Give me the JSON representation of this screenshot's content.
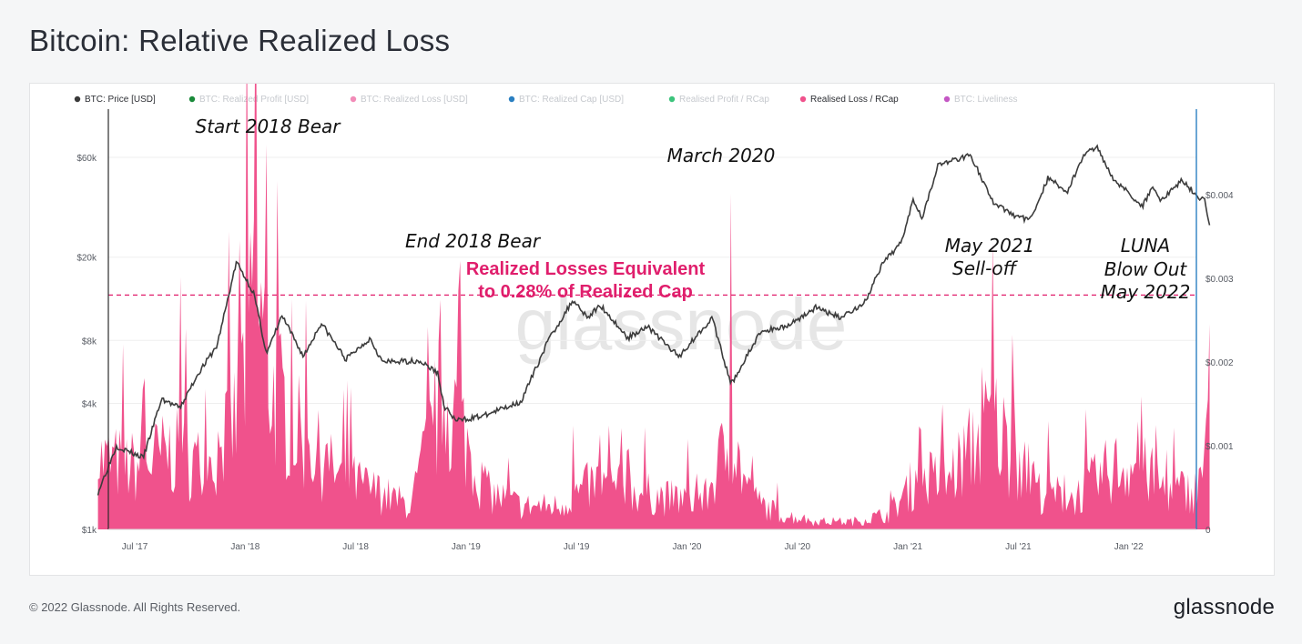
{
  "title": "Bitcoin: Relative Realized Loss",
  "footer": {
    "copyright": "© 2022 Glassnode. All Rights Reserved.",
    "logo": "glassnode"
  },
  "colors": {
    "loss_fill": "#f0528c",
    "price_line": "#3c3c3c",
    "threshold": "#e01e6c",
    "right_axis": "#2a7fc1"
  },
  "chart_data": {
    "type": "area",
    "watermark": "glassnode",
    "legend": [
      {
        "label": "BTC: Price [USD]",
        "color": "#3a3a3a",
        "active": true
      },
      {
        "label": "BTC: Realized Profit [USD]",
        "color": "#1a8a3a",
        "active": false
      },
      {
        "label": "BTC: Realized Loss [USD]",
        "color": "#f28cb8",
        "active": false
      },
      {
        "label": "BTC: Realized Cap [USD]",
        "color": "#2a7fc1",
        "active": false
      },
      {
        "label": "Realised Profit / RCap",
        "color": "#3cc47c",
        "active": false
      },
      {
        "label": "Realised Loss / RCap",
        "color": "#f0528c",
        "active": true
      },
      {
        "label": "BTC: Liveliness",
        "color": "#c457c4",
        "active": false
      }
    ],
    "x_ticks": [
      "Jul '17",
      "Jan '18",
      "Jul '18",
      "Jan '19",
      "Jul '19",
      "Jan '20",
      "Jul '20",
      "Jan '21",
      "Jul '21",
      "Jan '22"
    ],
    "x_range": [
      "2017-05",
      "2022-06"
    ],
    "y_left": {
      "scale": "log",
      "ticks": [
        "$1k",
        "$4k",
        "$8k",
        "$20k",
        "$60k"
      ],
      "values": [
        1000,
        4000,
        8000,
        20000,
        60000
      ]
    },
    "y_right": {
      "scale": "linear",
      "ticks": [
        "0",
        "$0.001",
        "$0.002",
        "$0.003",
        "$0.004"
      ],
      "values": [
        0,
        0.001,
        0.002,
        0.003,
        0.004
      ]
    },
    "threshold_value": 0.0028,
    "series": [
      {
        "name": "BTC: Price [USD]",
        "axis": "left",
        "points": [
          [
            "2017-05-01",
            1500
          ],
          [
            "2017-06-01",
            2500
          ],
          [
            "2017-07-15",
            2200
          ],
          [
            "2017-08-15",
            4200
          ],
          [
            "2017-09-15",
            3800
          ],
          [
            "2017-10-15",
            5600
          ],
          [
            "2017-11-15",
            7500
          ],
          [
            "2017-12-17",
            19000
          ],
          [
            "2018-01-15",
            13500
          ],
          [
            "2018-02-06",
            6900
          ],
          [
            "2018-03-01",
            10500
          ],
          [
            "2018-04-06",
            6700
          ],
          [
            "2018-05-05",
            9700
          ],
          [
            "2018-06-15",
            6500
          ],
          [
            "2018-07-25",
            8200
          ],
          [
            "2018-08-15",
            6300
          ],
          [
            "2018-10-15",
            6400
          ],
          [
            "2018-11-15",
            5600
          ],
          [
            "2018-11-25",
            3900
          ],
          [
            "2018-12-15",
            3300
          ],
          [
            "2019-02-01",
            3500
          ],
          [
            "2019-04-01",
            4100
          ],
          [
            "2019-05-15",
            8000
          ],
          [
            "2019-06-26",
            12500
          ],
          [
            "2019-07-20",
            10300
          ],
          [
            "2019-08-10",
            11800
          ],
          [
            "2019-09-25",
            8200
          ],
          [
            "2019-10-26",
            9400
          ],
          [
            "2019-12-18",
            6700
          ],
          [
            "2020-02-12",
            10300
          ],
          [
            "2020-03-12",
            5000
          ],
          [
            "2020-03-16",
            5100
          ],
          [
            "2020-05-01",
            8800
          ],
          [
            "2020-06-15",
            9400
          ],
          [
            "2020-08-01",
            11500
          ],
          [
            "2020-09-10",
            10300
          ],
          [
            "2020-10-20",
            12000
          ],
          [
            "2020-11-20",
            18500
          ],
          [
            "2020-12-20",
            23500
          ],
          [
            "2021-01-10",
            38000
          ],
          [
            "2021-01-25",
            31000
          ],
          [
            "2021-02-20",
            55000
          ],
          [
            "2021-03-15",
            58000
          ],
          [
            "2021-04-13",
            62000
          ],
          [
            "2021-05-19",
            37000
          ],
          [
            "2021-06-21",
            32000
          ],
          [
            "2021-07-20",
            30000
          ],
          [
            "2021-08-20",
            48000
          ],
          [
            "2021-09-21",
            41000
          ],
          [
            "2021-10-20",
            63000
          ],
          [
            "2021-11-10",
            67000
          ],
          [
            "2021-12-05",
            48000
          ],
          [
            "2022-01-24",
            35000
          ],
          [
            "2022-02-10",
            44000
          ],
          [
            "2022-02-24",
            37000
          ],
          [
            "2022-03-28",
            47000
          ],
          [
            "2022-04-20",
            40000
          ],
          [
            "2022-05-05",
            37000
          ],
          [
            "2022-05-13",
            29000
          ]
        ]
      },
      {
        "name": "Realised Loss / RCap",
        "axis": "right",
        "baseline": [
          [
            "2017-05-01",
            0.0009
          ],
          [
            "2017-07-01",
            0.0008
          ],
          [
            "2017-09-01",
            0.001
          ],
          [
            "2017-11-01",
            0.0008
          ],
          [
            "2017-12-15",
            0.0014
          ],
          [
            "2018-01-20",
            0.003
          ],
          [
            "2018-02-15",
            0.0018
          ],
          [
            "2018-04-01",
            0.0012
          ],
          [
            "2018-06-01",
            0.0007
          ],
          [
            "2018-08-01",
            0.0005
          ],
          [
            "2018-10-01",
            0.0003
          ],
          [
            "2018-11-25",
            0.0018
          ],
          [
            "2018-12-20",
            0.0014
          ],
          [
            "2019-02-01",
            0.0005
          ],
          [
            "2019-04-01",
            0.0003
          ],
          [
            "2019-06-01",
            0.0003
          ],
          [
            "2019-08-01",
            0.0006
          ],
          [
            "2019-10-01",
            0.0005
          ],
          [
            "2019-12-01",
            0.0004
          ],
          [
            "2020-02-01",
            0.0004
          ],
          [
            "2020-03-12",
            0.0012
          ],
          [
            "2020-04-15",
            0.0004
          ],
          [
            "2020-06-01",
            0.0002
          ],
          [
            "2020-08-01",
            0.0001
          ],
          [
            "2020-10-01",
            0.0001
          ],
          [
            "2020-12-01",
            0.0002
          ],
          [
            "2021-01-20",
            0.0007
          ],
          [
            "2021-03-01",
            0.0006
          ],
          [
            "2021-05-20",
            0.0014
          ],
          [
            "2021-06-20",
            0.001
          ],
          [
            "2021-08-01",
            0.0005
          ],
          [
            "2021-10-01",
            0.0004
          ],
          [
            "2021-12-05",
            0.0008
          ],
          [
            "2022-01-22",
            0.0008
          ],
          [
            "2022-03-01",
            0.0005
          ],
          [
            "2022-04-20",
            0.0005
          ],
          [
            "2022-05-13",
            0.0012
          ]
        ],
        "spikes": [
          [
            "2017-07-15",
            0.0018
          ],
          [
            "2017-09-15",
            0.0032
          ],
          [
            "2017-12-22",
            0.0035
          ],
          [
            "2018-01-16",
            0.0039
          ],
          [
            "2018-02-06",
            0.0047
          ],
          [
            "2018-03-30",
            0.0015
          ],
          [
            "2018-06-24",
            0.0018
          ],
          [
            "2018-11-20",
            0.0029
          ],
          [
            "2019-06-27",
            0.0014
          ],
          [
            "2019-09-25",
            0.0011
          ],
          [
            "2020-03-12",
            0.0043
          ],
          [
            "2021-01-21",
            0.0014
          ],
          [
            "2021-05-19",
            0.0036
          ],
          [
            "2021-06-22",
            0.0024
          ],
          [
            "2022-01-22",
            0.0016
          ],
          [
            "2022-05-12",
            0.0027
          ]
        ]
      }
    ],
    "annotations": [
      {
        "text": "Start 2018 Bear"
      },
      {
        "text": "End 2018 Bear"
      },
      {
        "text": "March 2020"
      },
      {
        "text": "May 2021"
      },
      {
        "text": "Sell-off"
      },
      {
        "text": "LUNA"
      },
      {
        "text": "Blow Out"
      },
      {
        "text": "May 2022"
      },
      {
        "text": "Realized Losses Equivalent",
        "emphasis": true
      },
      {
        "text": "to 0.28% of Realized Cap",
        "emphasis": true
      }
    ]
  }
}
